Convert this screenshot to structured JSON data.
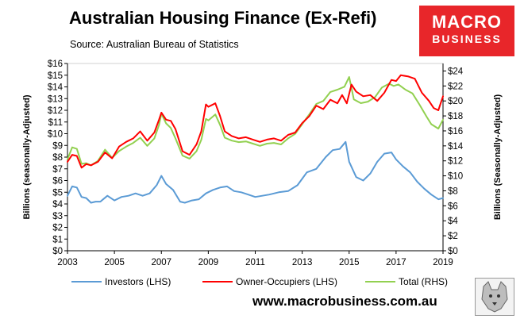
{
  "header": {
    "title": "Australian Housing Finance (Ex-Refi)",
    "source": "Source: Australian Bureau of Statistics"
  },
  "logo": {
    "line1": "MACRO",
    "line2": "BUSINESS",
    "icon": "wolf-mascot-icon"
  },
  "footer": {
    "url": "www.macrobusiness.com.au"
  },
  "colors": {
    "investors": "#5b9bd5",
    "owner_occupiers": "#ff0000",
    "total": "#92d050",
    "logo_bg": "#e8262a"
  },
  "chart_data": {
    "type": "line",
    "title": "Australian Housing Finance (Ex-Refi)",
    "ylabel": "Billions (seasonally-Adjusted)",
    "y2label": "Billions (Seasonally-Adjusted)",
    "ylim": [
      0,
      16
    ],
    "y2lim": [
      0,
      25
    ],
    "xlim": [
      2003,
      2019
    ],
    "x_ticks": [
      "2003",
      "2005",
      "2007",
      "2009",
      "2011",
      "2013",
      "2015",
      "2017",
      "2019"
    ],
    "y_ticks": [
      "$0",
      "$1",
      "$2",
      "$3",
      "$4",
      "$5",
      "$6",
      "$7",
      "$8",
      "$9",
      "$10",
      "$11",
      "$12",
      "$13",
      "$14",
      "$15",
      "$16"
    ],
    "y2_ticks": [
      "$0",
      "$2",
      "$4",
      "$6",
      "$8",
      "$10",
      "$12",
      "$14",
      "$16",
      "$18",
      "$20",
      "$22",
      "$24"
    ],
    "legend_position": "bottom",
    "grid": false,
    "series": [
      {
        "name": "Investors (LHS)",
        "axis": "left",
        "color": "#5b9bd5",
        "x": [
          2003.0,
          2003.2,
          2003.4,
          2003.6,
          2003.8,
          2004.0,
          2004.2,
          2004.4,
          2004.7,
          2005.0,
          2005.3,
          2005.6,
          2005.9,
          2006.2,
          2006.5,
          2006.8,
          2007.0,
          2007.2,
          2007.5,
          2007.8,
          2008.0,
          2008.3,
          2008.6,
          2008.9,
          2009.2,
          2009.5,
          2009.8,
          2010.1,
          2010.4,
          2010.7,
          2011.0,
          2011.3,
          2011.6,
          2012.0,
          2012.4,
          2012.8,
          2013.2,
          2013.6,
          2014.0,
          2014.3,
          2014.6,
          2014.85,
          2015.0,
          2015.3,
          2015.6,
          2015.9,
          2016.2,
          2016.5,
          2016.8,
          2017.0,
          2017.3,
          2017.6,
          2017.9,
          2018.2,
          2018.5,
          2018.8,
          2019.0
        ],
        "values": [
          4.7,
          5.5,
          5.4,
          4.6,
          4.5,
          4.1,
          4.2,
          4.2,
          4.7,
          4.3,
          4.6,
          4.7,
          4.9,
          4.7,
          4.9,
          5.6,
          6.4,
          5.7,
          5.2,
          4.2,
          4.1,
          4.3,
          4.4,
          4.9,
          5.2,
          5.4,
          5.5,
          5.1,
          5.0,
          4.8,
          4.6,
          4.7,
          4.8,
          5.0,
          5.1,
          5.6,
          6.7,
          7.0,
          8.0,
          8.6,
          8.7,
          9.3,
          7.6,
          6.3,
          6.0,
          6.6,
          7.6,
          8.3,
          8.4,
          7.8,
          7.2,
          6.7,
          5.9,
          5.3,
          4.8,
          4.4,
          4.5
        ]
      },
      {
        "name": "Owner-Occupiers (LHS)",
        "axis": "left",
        "color": "#ff0000",
        "x": [
          2003.0,
          2003.2,
          2003.4,
          2003.6,
          2003.8,
          2004.0,
          2004.3,
          2004.6,
          2004.9,
          2005.2,
          2005.5,
          2005.8,
          2006.1,
          2006.4,
          2006.7,
          2006.9,
          2007.0,
          2007.2,
          2007.4,
          2007.6,
          2007.9,
          2008.2,
          2008.5,
          2008.7,
          2008.9,
          2009.0,
          2009.3,
          2009.5,
          2009.7,
          2010.0,
          2010.3,
          2010.6,
          2010.9,
          2011.2,
          2011.5,
          2011.8,
          2012.1,
          2012.4,
          2012.7,
          2013.0,
          2013.3,
          2013.6,
          2013.9,
          2014.2,
          2014.5,
          2014.7,
          2014.9,
          2015.1,
          2015.3,
          2015.6,
          2015.9,
          2016.2,
          2016.5,
          2016.8,
          2017.0,
          2017.2,
          2017.5,
          2017.8,
          2018.1,
          2018.4,
          2018.6,
          2018.8,
          2019.0
        ],
        "values": [
          7.6,
          8.2,
          8.1,
          7.1,
          7.4,
          7.3,
          7.6,
          8.4,
          7.9,
          8.9,
          9.3,
          9.6,
          10.2,
          9.4,
          10.1,
          11.2,
          11.8,
          11.2,
          11.1,
          10.4,
          8.5,
          8.2,
          9.1,
          10.2,
          12.5,
          12.3,
          12.6,
          11.5,
          10.2,
          9.8,
          9.6,
          9.7,
          9.5,
          9.3,
          9.5,
          9.6,
          9.4,
          9.9,
          10.1,
          10.9,
          11.5,
          12.4,
          12.1,
          12.9,
          12.6,
          13.3,
          12.6,
          14.2,
          13.6,
          13.2,
          13.3,
          12.8,
          13.5,
          14.6,
          14.5,
          15.0,
          14.9,
          14.7,
          13.5,
          12.8,
          12.2,
          12.0,
          13.2
        ]
      },
      {
        "name": "Total (RHS)",
        "axis": "right",
        "color": "#92d050",
        "x": [
          2003.0,
          2003.2,
          2003.4,
          2003.6,
          2003.8,
          2004.0,
          2004.3,
          2004.6,
          2004.9,
          2005.2,
          2005.5,
          2005.8,
          2006.1,
          2006.4,
          2006.7,
          2006.9,
          2007.0,
          2007.2,
          2007.4,
          2007.6,
          2007.9,
          2008.2,
          2008.5,
          2008.7,
          2008.9,
          2009.0,
          2009.3,
          2009.5,
          2009.7,
          2010.0,
          2010.3,
          2010.6,
          2010.9,
          2011.2,
          2011.5,
          2011.8,
          2012.1,
          2012.4,
          2012.7,
          2013.0,
          2013.3,
          2013.6,
          2013.9,
          2014.2,
          2014.5,
          2014.8,
          2015.0,
          2015.2,
          2015.5,
          2015.8,
          2016.1,
          2016.4,
          2016.7,
          2016.9,
          2017.1,
          2017.4,
          2017.7,
          2018.0,
          2018.3,
          2018.5,
          2018.8,
          2019.0
        ],
        "values": [
          12.2,
          13.8,
          13.6,
          11.6,
          11.7,
          11.4,
          12.0,
          13.5,
          12.4,
          13.3,
          13.9,
          14.4,
          15.1,
          14.0,
          15.0,
          16.8,
          18.3,
          17.0,
          16.4,
          15.0,
          12.7,
          12.3,
          13.3,
          14.8,
          17.6,
          17.4,
          18.2,
          16.8,
          15.1,
          14.7,
          14.5,
          14.6,
          14.3,
          14.0,
          14.3,
          14.4,
          14.2,
          15.0,
          15.6,
          16.9,
          18.2,
          19.6,
          20.0,
          21.2,
          21.5,
          21.9,
          23.2,
          20.2,
          19.7,
          19.9,
          20.5,
          21.8,
          22.3,
          22.0,
          22.2,
          21.5,
          21.0,
          19.5,
          17.9,
          16.9,
          16.3,
          17.5
        ]
      }
    ]
  }
}
